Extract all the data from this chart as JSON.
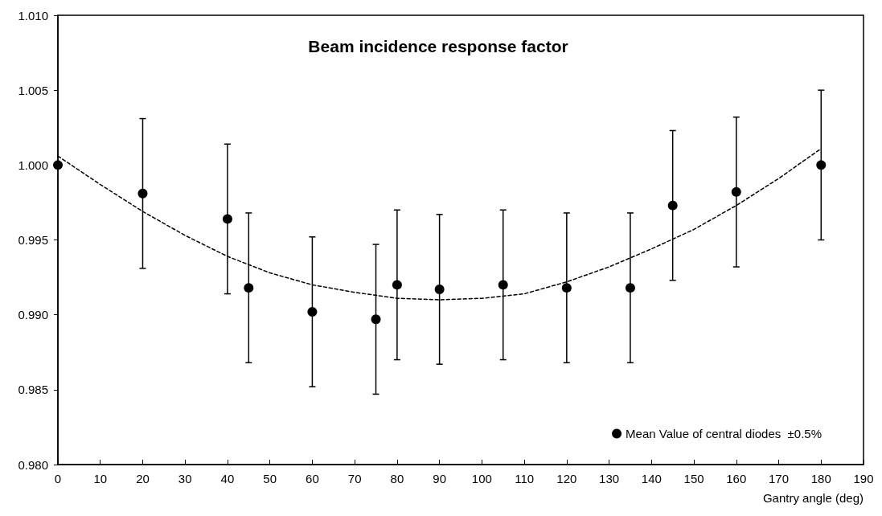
{
  "chart_data": {
    "type": "scatter",
    "title": "Beam incidence response factor",
    "xlabel": "Gantry angle (deg)",
    "x": [
      0,
      20,
      40,
      45,
      60,
      75,
      80,
      90,
      105,
      120,
      135,
      145,
      160,
      180
    ],
    "series": [
      {
        "name": "Mean Value of central diodes  ±0.5%",
        "color": "#000000",
        "values": [
          1.0,
          0.9981,
          0.9964,
          0.9918,
          0.9902,
          0.9897,
          0.992,
          0.9917,
          0.992,
          0.9918,
          0.9918,
          0.9973,
          0.9982,
          1.0
        ],
        "marker": "circle",
        "errors": [
          null,
          0.005,
          0.005,
          0.005,
          0.005,
          0.005,
          0.005,
          0.005,
          0.005,
          0.005,
          0.005,
          0.005,
          0.005,
          0.005
        ]
      },
      {
        "type": "line",
        "marker": "none",
        "color": "#000000",
        "line_style": "dashed",
        "x": [
          0,
          10,
          20,
          30,
          40,
          50,
          60,
          70,
          80,
          90,
          100,
          110,
          120,
          130,
          140,
          150,
          160,
          170,
          180
        ],
        "values": [
          1.0006,
          0.9987,
          0.9969,
          0.9953,
          0.9939,
          0.9928,
          0.992,
          0.9915,
          0.9911,
          0.991,
          0.9911,
          0.9914,
          0.9922,
          0.9932,
          0.9944,
          0.9957,
          0.9973,
          0.9991,
          1.0011
        ]
      }
    ],
    "xlim": [
      0,
      190
    ],
    "xticks": [
      0,
      10,
      20,
      30,
      40,
      50,
      60,
      70,
      80,
      90,
      100,
      110,
      120,
      130,
      140,
      150,
      160,
      170,
      180,
      190
    ],
    "ylim": [
      0.98,
      1.01
    ],
    "yticks": [
      {
        "value": 0.98,
        "label": "0.980"
      },
      0.985,
      {
        "value": 0.99,
        "label": "0.990"
      },
      0.995,
      {
        "value": 1,
        "label": "1.000"
      },
      1.005,
      {
        "value": 1.01,
        "label": "1.010"
      }
    ],
    "grid": false,
    "legend": "bottom right"
  }
}
